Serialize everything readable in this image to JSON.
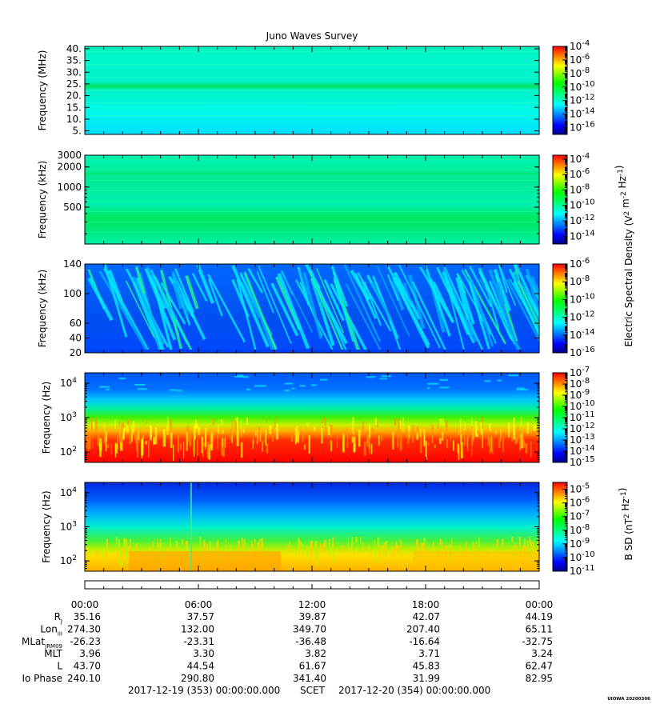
{
  "chart_data": {
    "type": "heatmap",
    "title": "Juno Waves Survey",
    "panels": [
      {
        "ylabel": "Frequency (MHz)",
        "yscale": "linear",
        "ylim": [
          3.5,
          41
        ],
        "yticks": [
          {
            "v": 5,
            "label": "5."
          },
          {
            "v": 10,
            "label": "10."
          },
          {
            "v": 15,
            "label": "15."
          },
          {
            "v": 20,
            "label": "20."
          },
          {
            "v": 25,
            "label": "25."
          },
          {
            "v": 30,
            "label": "30."
          },
          {
            "v": 35,
            "label": "35."
          },
          {
            "v": 40,
            "label": "40."
          }
        ],
        "colorbar": {
          "exponents": [
            "-4",
            "-6",
            "-8",
            "-10",
            "-12",
            "-14",
            "-16"
          ],
          "scale_min": -17,
          "scale_max": -4,
          "label": ""
        }
      },
      {
        "ylabel": "Frequency (kHz)",
        "yscale": "log",
        "ylim": [
          140,
          3000
        ],
        "yticks": [
          {
            "v": 3000,
            "label": "3000"
          },
          {
            "v": 2000,
            "label": "2000"
          },
          {
            "v": 1000,
            "label": "1000"
          },
          {
            "v": 500,
            "label": "500"
          }
        ],
        "colorbar": {
          "exponents": [
            "-4",
            "-6",
            "-8",
            "-10",
            "-12",
            "-14"
          ],
          "scale_min": -15,
          "scale_max": -3.5,
          "label": "Electric Spectral Density (V<sup>2</sup> m<sup>-2</sup> Hz<sup>-1</sup>)"
        }
      },
      {
        "ylabel": "Frequency (kHz)",
        "yscale": "linear",
        "ylim": [
          20,
          140
        ],
        "yticks": [
          {
            "v": 140,
            "label": "140"
          },
          {
            "v": 100,
            "label": "100"
          },
          {
            "v": 60,
            "label": "60"
          },
          {
            "v": 40,
            "label": "40"
          },
          {
            "v": 20,
            "label": "20"
          }
        ],
        "colorbar": {
          "exponents": [
            "-6",
            "-8",
            "-10",
            "-12",
            "-14",
            "-16"
          ],
          "scale_min": -16,
          "scale_max": -6,
          "label": ""
        }
      },
      {
        "ylabel": "Frequency (Hz)",
        "yscale": "log",
        "ylim": [
          50,
          20000
        ],
        "yticks": [
          {
            "v": 10000,
            "base": "10",
            "exp": "4"
          },
          {
            "v": 1000,
            "base": "10",
            "exp": "3"
          },
          {
            "v": 100,
            "base": "10",
            "exp": "2"
          }
        ],
        "colorbar": {
          "exponents": [
            "-7",
            "-8",
            "-9",
            "-10",
            "-11",
            "-12",
            "-13",
            "-14",
            "-15"
          ],
          "scale_min": -15,
          "scale_max": -7,
          "label": ""
        }
      },
      {
        "ylabel": "Frequency (Hz)",
        "yscale": "log",
        "ylim": [
          50,
          20000
        ],
        "yticks": [
          {
            "v": 10000,
            "base": "10",
            "exp": "4"
          },
          {
            "v": 1000,
            "base": "10",
            "exp": "3"
          },
          {
            "v": 100,
            "base": "10",
            "exp": "2"
          }
        ],
        "colorbar": {
          "exponents": [
            "-5",
            "-6",
            "-7",
            "-8",
            "-9",
            "-10",
            "-11"
          ],
          "scale_min": -11,
          "scale_max": -4.5,
          "label": "B SD (nT<sup>2</sup> Hz<sup>-1</sup>)"
        }
      }
    ],
    "time_ticks": [
      "00:00",
      "06:00",
      "12:00",
      "18:00",
      "00:00"
    ],
    "ephemeris": [
      {
        "label": "R",
        "sub": "J",
        "values": [
          "35.16",
          "37.57",
          "39.87",
          "42.07",
          "44.19"
        ]
      },
      {
        "label": "Lon",
        "sub": "III",
        "values": [
          "274.30",
          "132.00",
          "349.70",
          "207.40",
          "65.11"
        ]
      },
      {
        "label": "MLat",
        "sub": "JRM09",
        "values": [
          "-26.23",
          "-23.31",
          "-36.48",
          "-16.64",
          "-32.75"
        ]
      },
      {
        "label": "MLT",
        "sub": "",
        "values": [
          "3.96",
          "3.30",
          "3.82",
          "3.71",
          "3.24"
        ]
      },
      {
        "label": "L",
        "sub": "",
        "values": [
          "43.70",
          "44.54",
          "61.67",
          "45.83",
          "62.47"
        ]
      },
      {
        "label": "Io Phase",
        "sub": "",
        "values": [
          "240.10",
          "290.80",
          "341.40",
          "31.99",
          "82.95"
        ]
      }
    ],
    "scet": {
      "start": "2017-12-19 (353) 00:00:00.000",
      "label": "SCET",
      "end": "2017-12-20 (354) 00:00:00.000"
    },
    "credit": "UIOWA 20200306"
  },
  "colors": {
    "ramp": [
      "#00008b",
      "#0000ff",
      "#0080ff",
      "#00ffff",
      "#00ff80",
      "#00ff00",
      "#80ff00",
      "#ffff00",
      "#ff8000",
      "#ff0000"
    ]
  }
}
